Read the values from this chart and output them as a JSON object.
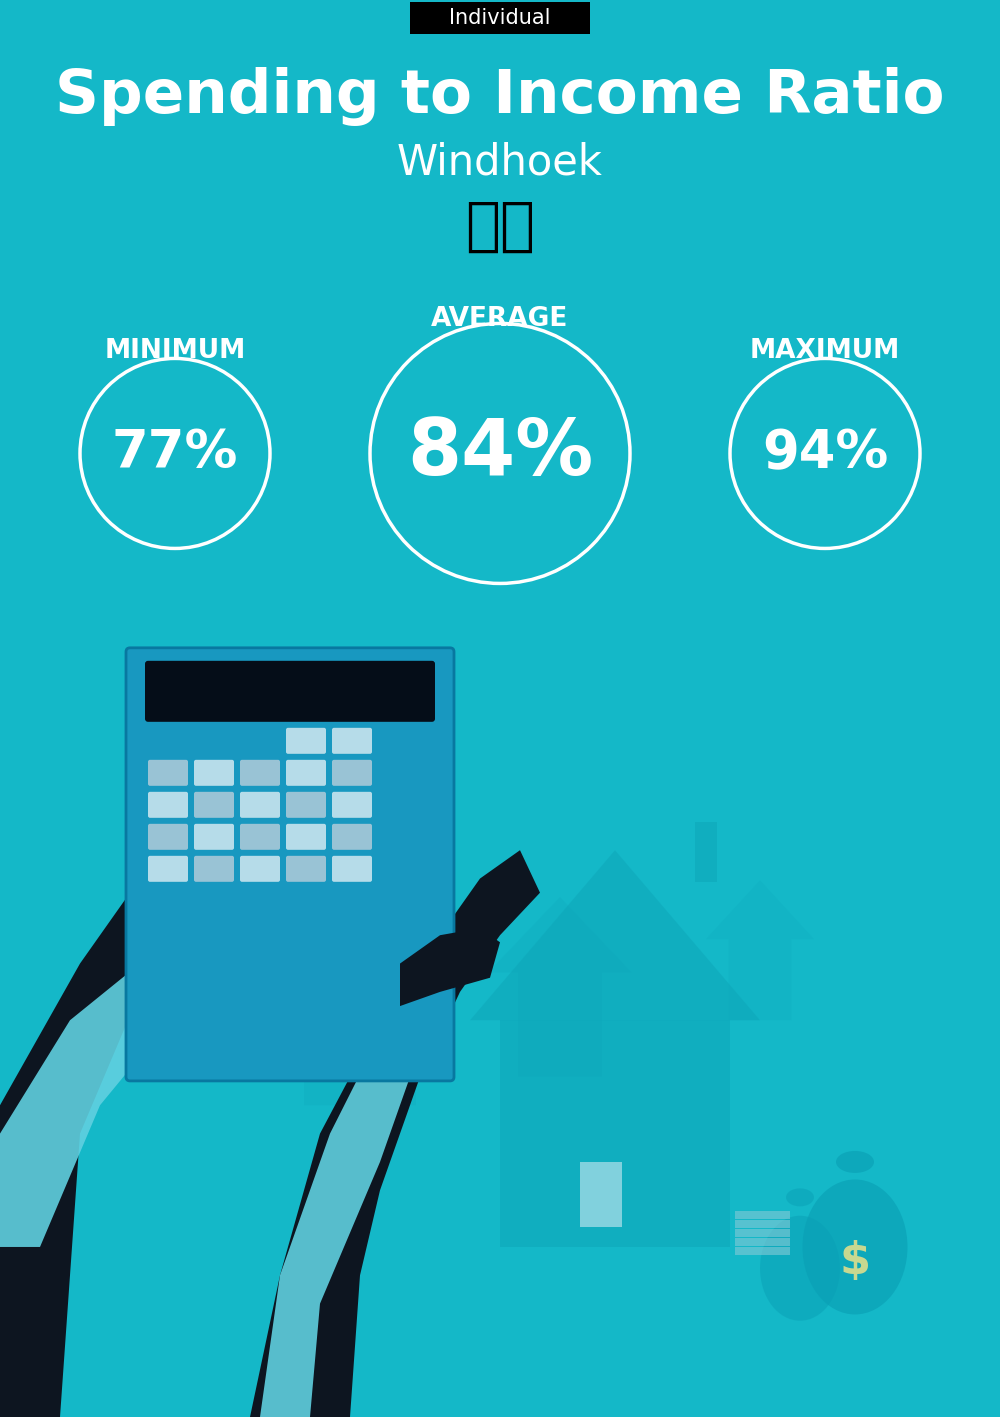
{
  "title": "Spending to Income Ratio",
  "subtitle": "Windhoek",
  "tag_label": "Individual",
  "bg_color": "#14b8c8",
  "tag_bg": "#000000",
  "tag_text_color": "#ffffff",
  "title_color": "#ffffff",
  "subtitle_color": "#ffffff",
  "circle_color": "#ffffff",
  "text_color": "#ffffff",
  "label_color": "#ffffff",
  "average_label": "AVERAGE",
  "minimum_label": "MINIMUM",
  "maximum_label": "MAXIMUM",
  "min_value": "77%",
  "avg_value": "84%",
  "max_value": "94%",
  "min_fontsize": 38,
  "avg_fontsize": 56,
  "max_fontsize": 38,
  "label_fontsize": 19,
  "title_fontsize": 44,
  "subtitle_fontsize": 30,
  "tag_fontsize": 15
}
